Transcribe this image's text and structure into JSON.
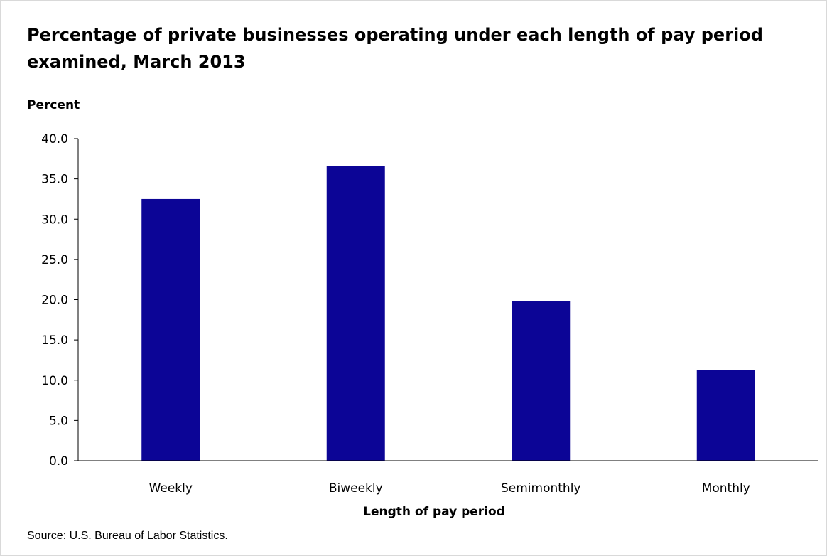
{
  "chart_data": {
    "type": "bar",
    "title": "Percentage of private businesses operating under each length of pay period examined, March 2013",
    "ylabel": "Percent",
    "xlabel": "Length of pay period",
    "categories": [
      "Weekly",
      "Biweekly",
      "Semimonthly",
      "Monthly"
    ],
    "values": [
      32.5,
      36.6,
      19.8,
      11.3
    ],
    "ylim": [
      0,
      40
    ],
    "yticks": [
      "0.0",
      "5.0",
      "10.0",
      "15.0",
      "20.0",
      "25.0",
      "30.0",
      "35.0",
      "40.0"
    ],
    "grid": false,
    "legend": "none",
    "bar_color": "#0c0596",
    "source": "Source: U.S. Bureau of Labor Statistics."
  }
}
